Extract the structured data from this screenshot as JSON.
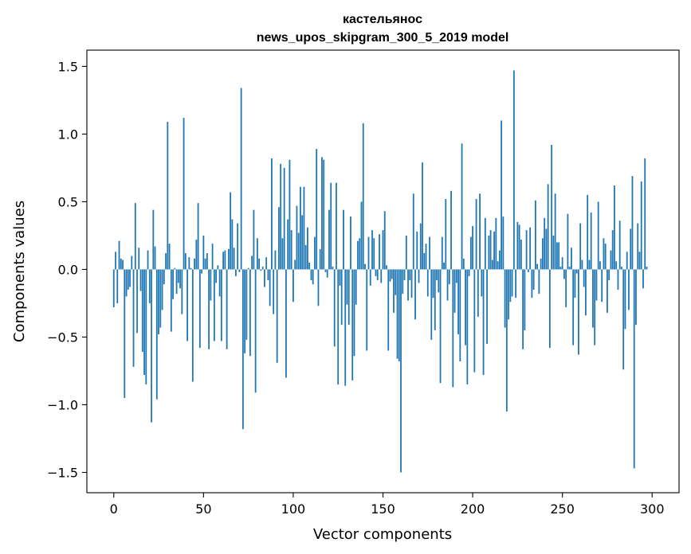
{
  "chart_data": {
    "type": "bar",
    "title": "кастельянос",
    "subtitle": "news_upos_skipgram_300_5_2019 model",
    "xlabel": "Vector components",
    "ylabel": "Components values",
    "xlim": [
      -15,
      315
    ],
    "ylim": [
      -1.65,
      1.62
    ],
    "xticks": [
      0,
      50,
      100,
      150,
      200,
      250,
      300
    ],
    "yticks": [
      1.5,
      1.0,
      0.5,
      0.0,
      -0.5,
      -1.0,
      -1.5
    ],
    "xtick_labels": [
      "0",
      "50",
      "100",
      "150",
      "200",
      "250",
      "300"
    ],
    "ytick_labels": [
      "1.5",
      "1.0",
      "0.5",
      "0.0",
      "−0.5",
      "−1.0",
      "−1.5"
    ],
    "bar_color": "#1f77b4",
    "grid": false,
    "values": [
      -0.28,
      0.13,
      -0.25,
      0.21,
      0.08,
      0.07,
      -0.95,
      -0.2,
      -0.15,
      -0.13,
      0.1,
      -0.72,
      0.49,
      -0.47,
      0.16,
      -0.16,
      -0.61,
      -0.78,
      -0.85,
      0.14,
      -0.25,
      -1.13,
      0.44,
      0.17,
      -0.96,
      -0.48,
      -0.43,
      -0.3,
      -0.11,
      0.12,
      1.09,
      0.19,
      -0.46,
      -0.22,
      0.01,
      -0.18,
      -0.1,
      -0.14,
      -0.33,
      1.12,
      0.12,
      -0.53,
      0.09,
      0.01,
      -0.83,
      0.08,
      0.22,
      0.49,
      -0.58,
      -0.03,
      0.25,
      0.08,
      0.12,
      -0.59,
      -0.23,
      0.19,
      -0.53,
      -0.1,
      0.03,
      -0.2,
      -0.53,
      0.13,
      0.14,
      -0.59,
      0.15,
      0.57,
      0.37,
      0.16,
      -0.05,
      0.34,
      -0.02,
      1.34,
      -1.18,
      -0.62,
      -0.52,
      0.01,
      -0.64,
      0.1,
      0.44,
      -0.91,
      0.23,
      0.08,
      -0.01,
      0.02,
      -0.13,
      0.09,
      -0.08,
      -0.27,
      0.82,
      -0.33,
      0.14,
      -0.69,
      0.46,
      0.78,
      0.23,
      0.75,
      -0.8,
      0.37,
      0.81,
      0.29,
      -0.24,
      0.07,
      0.47,
      0.27,
      0.61,
      0.4,
      0.61,
      0.18,
      0.31,
      0.05,
      -0.08,
      -0.11,
      0.24,
      0.89,
      -0.27,
      0.15,
      0.83,
      0.81,
      -0.02,
      -0.06,
      0.44,
      0.64,
      0.02,
      -0.57,
      0.64,
      -0.85,
      -0.12,
      -0.41,
      0.44,
      -0.86,
      -0.26,
      -0.41,
      0.39,
      -0.82,
      -0.64,
      -0.26,
      0.21,
      0.23,
      0.5,
      1.08,
      0.04,
      -0.6,
      0.24,
      -0.12,
      0.29,
      0.23,
      -0.05,
      -0.08,
      0.26,
      -0.1,
      0.29,
      0.43,
      0.03,
      -0.6,
      -0.09,
      -0.07,
      -0.32,
      -0.19,
      -0.66,
      -0.68,
      -1.5,
      -0.18,
      -0.08,
      0.25,
      -0.23,
      -0.08,
      -0.21,
      0.56,
      -0.37,
      0.28,
      -0.1,
      0.34,
      0.79,
      0.12,
      0.19,
      -0.2,
      0.24,
      -0.52,
      -0.21,
      -0.45,
      -0.08,
      -0.17,
      -0.84,
      0.24,
      0.05,
      0.52,
      -0.23,
      -0.11,
      0.58,
      -0.87,
      -0.32,
      -0.1,
      -0.48,
      -0.68,
      0.93,
      0.08,
      -0.56,
      -0.85,
      -0.05,
      0.24,
      0.32,
      -0.76,
      0.52,
      -0.35,
      0.56,
      -0.2,
      -0.78,
      0.38,
      -0.55,
      0.25,
      0.29,
      0.07,
      0.28,
      0.38,
      0.06,
      0.14,
      1.1,
      0.39,
      -0.43,
      -1.05,
      -0.37,
      -0.24,
      -0.2,
      1.47,
      -0.21,
      0.35,
      0.33,
      0.22,
      -0.59,
      -0.45,
      0.29,
      -0.02,
      0.31,
      -0.21,
      -0.15,
      0.51,
      0.04,
      -0.18,
      0.08,
      0.23,
      0.38,
      0.3,
      0.63,
      -0.58,
      0.92,
      0.25,
      0.56,
      0.2,
      0.2,
      0.02,
      0.09,
      -0.07,
      -0.28,
      0.41,
      0.02,
      0.16,
      -0.56,
      -0.21,
      -0.03,
      -0.63,
      0.34,
      0.07,
      -0.13,
      -0.34,
      0.55,
      0.07,
      0.42,
      -0.43,
      -0.56,
      -0.23,
      0.5,
      0.06,
      -0.24,
      0.23,
      0.19,
      -0.32,
      -0.08,
      0.14,
      0.29,
      0.62,
      0.06,
      -0.15,
      0.36,
      0.02,
      -0.74,
      -0.44,
      0.13,
      -0.3,
      0.3,
      0.69,
      -1.47,
      -0.41,
      0.34,
      0.13,
      0.65,
      -0.14,
      0.82,
      0.02
    ]
  }
}
